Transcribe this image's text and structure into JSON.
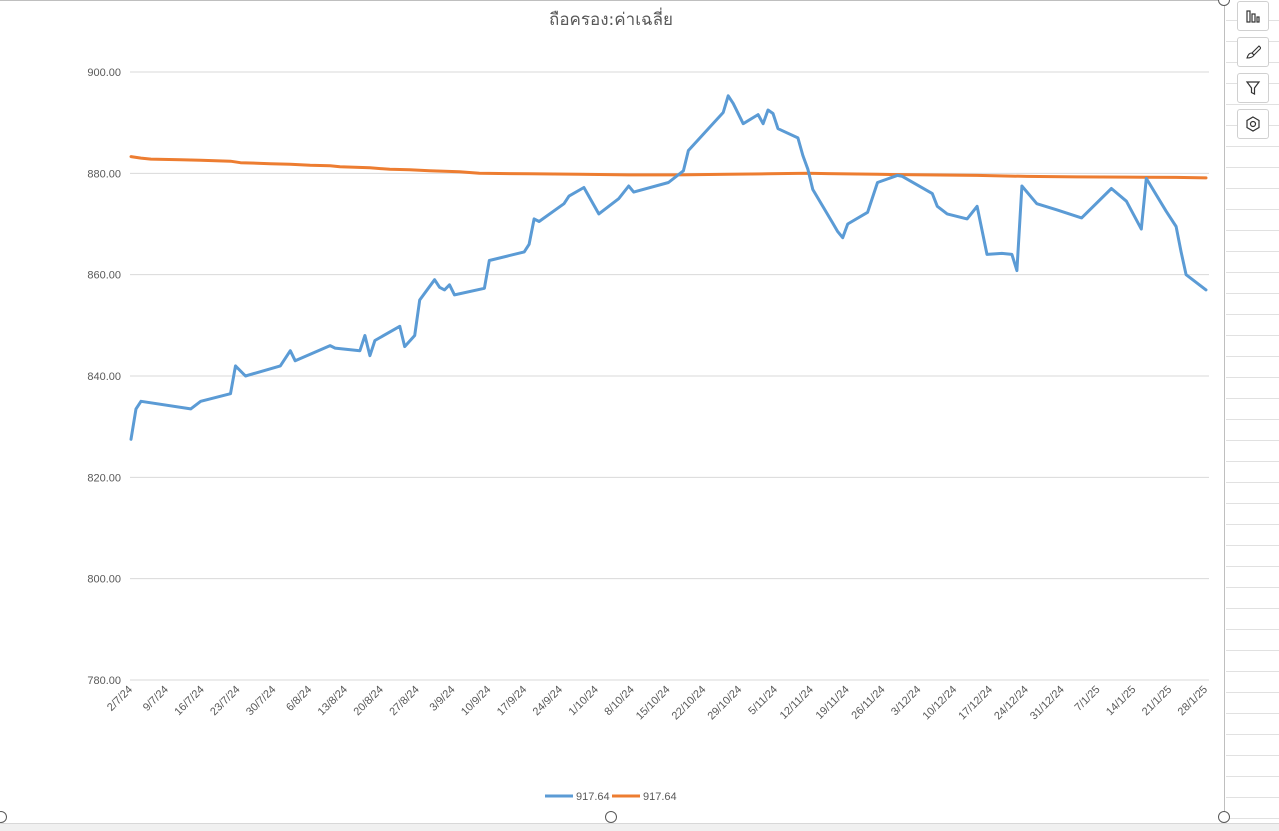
{
  "chart_data": {
    "type": "line",
    "title": "ถือครอง:ค่าเฉลี่ย",
    "xlabel": "",
    "ylabel": "",
    "ylim": [
      780,
      900
    ],
    "yticks": [
      "780.00",
      "800.00",
      "820.00",
      "840.00",
      "860.00",
      "880.00",
      "900.00"
    ],
    "xticks": [
      "2/7/24",
      "9/7/24",
      "16/7/24",
      "23/7/24",
      "30/7/24",
      "6/8/24",
      "13/8/24",
      "20/8/24",
      "27/8/24",
      "3/9/24",
      "10/9/24",
      "17/9/24",
      "24/9/24",
      "1/10/24",
      "8/10/24",
      "15/10/24",
      "22/10/24",
      "29/10/24",
      "5/11/24",
      "12/11/24",
      "19/11/24",
      "26/11/24",
      "3/12/24",
      "10/12/24",
      "17/12/24",
      "24/12/24",
      "31/12/24",
      "7/1/25",
      "14/1/25",
      "21/1/25",
      "28/1/25"
    ],
    "grid": true,
    "legend_position": "bottom",
    "series": [
      {
        "name": "917.64",
        "color": "#5b9bd5",
        "points": [
          [
            0,
            827.5
          ],
          [
            1,
            833.5
          ],
          [
            2,
            835
          ],
          [
            12,
            833.5
          ],
          [
            14,
            835
          ],
          [
            20,
            836.5
          ],
          [
            21,
            842
          ],
          [
            23,
            840
          ],
          [
            30,
            842
          ],
          [
            32,
            845
          ],
          [
            33,
            843
          ],
          [
            40,
            846
          ],
          [
            41,
            845.5
          ],
          [
            46,
            845
          ],
          [
            47,
            848
          ],
          [
            48,
            844
          ],
          [
            49,
            847
          ],
          [
            54,
            849.8
          ],
          [
            55,
            845.8
          ],
          [
            57,
            848
          ],
          [
            58,
            855
          ],
          [
            61,
            859
          ],
          [
            62,
            857.5
          ],
          [
            63,
            857
          ],
          [
            64,
            858
          ],
          [
            65,
            856
          ],
          [
            71,
            857.3
          ],
          [
            72,
            862.8
          ],
          [
            79,
            864.5
          ],
          [
            80,
            866
          ],
          [
            81,
            871
          ],
          [
            82,
            870.5
          ],
          [
            87,
            874
          ],
          [
            88,
            875.5
          ],
          [
            91,
            877.2
          ],
          [
            94,
            872
          ],
          [
            98,
            875
          ],
          [
            100,
            877.5
          ],
          [
            101,
            876.3
          ],
          [
            108,
            878.2
          ],
          [
            111,
            880.5
          ],
          [
            112,
            884.5
          ],
          [
            116,
            888.8
          ],
          [
            119,
            892
          ],
          [
            120,
            895.3
          ],
          [
            121,
            893.8
          ],
          [
            123,
            889.8
          ],
          [
            126,
            891.6
          ],
          [
            127,
            889.8
          ],
          [
            128,
            892.5
          ],
          [
            129,
            891.8
          ],
          [
            130,
            888.8
          ],
          [
            134,
            887
          ],
          [
            135,
            883.5
          ],
          [
            136,
            880.8
          ],
          [
            137,
            876.8
          ],
          [
            141,
            870.2
          ],
          [
            142,
            868.5
          ],
          [
            143,
            867.3
          ],
          [
            144,
            870
          ],
          [
            148,
            872.3
          ],
          [
            150,
            878.2
          ],
          [
            154,
            879.6
          ],
          [
            155,
            879.4
          ],
          [
            161,
            876
          ],
          [
            162,
            873.5
          ],
          [
            164,
            872
          ],
          [
            168,
            871
          ],
          [
            170,
            873.5
          ],
          [
            172,
            864
          ],
          [
            175,
            864.2
          ],
          [
            177,
            864
          ],
          [
            178,
            860.8
          ],
          [
            179,
            877.5
          ],
          [
            182,
            874
          ],
          [
            186,
            872.8
          ],
          [
            191,
            871.2
          ],
          [
            197,
            877
          ],
          [
            200,
            874.5
          ],
          [
            203,
            869
          ],
          [
            204,
            879
          ],
          [
            208,
            872.5
          ],
          [
            210,
            869.5
          ],
          [
            211,
            864.5
          ],
          [
            212,
            860
          ],
          [
            216,
            857
          ]
        ]
      },
      {
        "name": "917.64",
        "color": "#ed7d31",
        "points": [
          [
            0,
            883.3
          ],
          [
            2,
            883
          ],
          [
            4,
            882.8
          ],
          [
            10,
            882.7
          ],
          [
            14,
            882.6
          ],
          [
            20,
            882.4
          ],
          [
            22,
            882.1
          ],
          [
            28,
            881.9
          ],
          [
            32,
            881.8
          ],
          [
            36,
            881.6
          ],
          [
            40,
            881.5
          ],
          [
            42,
            881.3
          ],
          [
            48,
            881.1
          ],
          [
            52,
            880.8
          ],
          [
            56,
            880.7
          ],
          [
            60,
            880.5
          ],
          [
            66,
            880.3
          ],
          [
            70,
            880
          ],
          [
            80,
            879.9
          ],
          [
            90,
            879.8
          ],
          [
            100,
            879.7
          ],
          [
            110,
            879.7
          ],
          [
            120,
            879.8
          ],
          [
            128,
            879.9
          ],
          [
            136,
            880
          ],
          [
            140,
            879.95
          ],
          [
            150,
            879.8
          ],
          [
            160,
            879.7
          ],
          [
            170,
            879.6
          ],
          [
            180,
            879.4
          ],
          [
            190,
            879.3
          ],
          [
            200,
            879.25
          ],
          [
            210,
            879.2
          ],
          [
            216,
            879.1
          ]
        ]
      }
    ]
  },
  "side_panel": {
    "icons": [
      "chart-elements-icon",
      "chart-styles-icon",
      "chart-filters-icon",
      "settings-icon"
    ]
  }
}
